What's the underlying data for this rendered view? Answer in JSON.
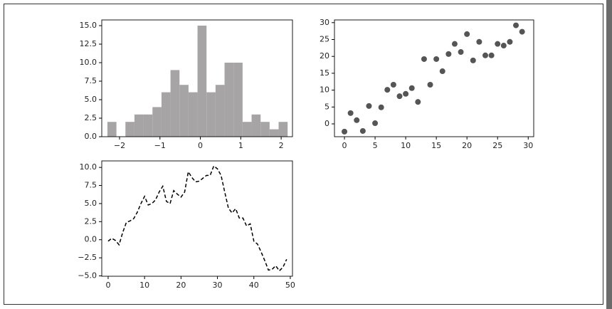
{
  "chart_data": [
    {
      "type": "histogram",
      "color": "#a6a4a4",
      "bins": [
        -2.3,
        -2.077,
        -1.854,
        -1.631,
        -1.408,
        -1.185,
        -0.962,
        -0.739,
        -0.516,
        -0.293,
        -0.07,
        0.153,
        0.376,
        0.599,
        0.822,
        1.045,
        1.268,
        1.491,
        1.714,
        1.937,
        2.16
      ],
      "values": [
        2,
        0,
        2,
        3,
        3,
        4,
        6,
        9,
        7,
        6,
        15,
        6,
        7,
        10,
        10,
        2,
        3,
        2,
        1,
        2
      ],
      "xlim": [
        -2.44,
        2.28
      ],
      "ylim": [
        0,
        15.77
      ],
      "xticks": [
        {
          "value": -2,
          "label": "−2"
        },
        {
          "value": -1,
          "label": "−1"
        },
        0,
        1,
        2
      ],
      "yticks": [
        {
          "value": 0,
          "label": "0.0"
        },
        {
          "value": 2.5,
          "label": "2.5"
        },
        {
          "value": 5,
          "label": "5.0"
        },
        {
          "value": 7.5,
          "label": "7.5"
        },
        {
          "value": 10,
          "label": "10.0"
        },
        {
          "value": 12.5,
          "label": "12.5"
        },
        {
          "value": 15,
          "label": "15.0"
        }
      ]
    },
    {
      "type": "scatter",
      "color": "#555555",
      "x": [
        0,
        1,
        2,
        3,
        4,
        5,
        6,
        7,
        8,
        9,
        10,
        11,
        12,
        13,
        14,
        15,
        16,
        17,
        18,
        19,
        20,
        21,
        22,
        23,
        24,
        25,
        26,
        27,
        28,
        29
      ],
      "values": [
        -2.3,
        3.2,
        1.1,
        -2.1,
        5.3,
        0.2,
        4.9,
        10.1,
        11.6,
        8.2,
        8.9,
        10.6,
        6.5,
        19.2,
        11.6,
        19.2,
        15.6,
        20.7,
        23.7,
        21.3,
        26.6,
        18.8,
        24.3,
        20.3,
        20.3,
        23.7,
        23.2,
        24.3,
        29.2,
        27.3
      ],
      "xlim": [
        -1.63,
        30.9
      ],
      "ylim": [
        -3.8,
        30.8
      ],
      "xticks": [
        0,
        5,
        10,
        15,
        20,
        25,
        30
      ],
      "yticks": [
        0,
        5,
        10,
        15,
        20,
        25,
        30
      ]
    },
    {
      "type": "line",
      "color": "#000000",
      "linestyle": "dashed",
      "x": [
        0,
        1,
        2,
        3,
        4,
        5,
        6,
        7,
        8,
        9,
        10,
        11,
        12,
        13,
        14,
        15,
        16,
        17,
        18,
        19,
        20,
        21,
        22,
        23,
        24,
        25,
        26,
        27,
        28,
        29,
        30,
        31,
        32,
        33,
        34,
        35,
        36,
        37,
        38,
        39,
        40,
        41,
        42,
        43,
        44,
        45,
        46,
        47,
        48,
        49
      ],
      "values": [
        -0.2,
        0.2,
        -0.1,
        -0.7,
        1.0,
        2.4,
        2.6,
        2.9,
        3.8,
        5.0,
        6.0,
        4.8,
        5.0,
        5.5,
        6.6,
        7.4,
        5.3,
        5.0,
        6.8,
        6.3,
        5.9,
        6.6,
        9.4,
        8.6,
        8.0,
        8.1,
        8.5,
        8.9,
        8.9,
        10.2,
        9.8,
        8.9,
        6.6,
        4.4,
        3.7,
        4.3,
        3.0,
        3.0,
        1.9,
        2.2,
        -0.2,
        -0.6,
        -1.7,
        -2.9,
        -4.2,
        -4.1,
        -3.6,
        -4.3,
        -3.8,
        -2.7
      ],
      "xlim": [
        -1.75,
        50.6
      ],
      "ylim": [
        -5.05,
        10.9
      ],
      "xticks": [
        0,
        10,
        20,
        30,
        40,
        50
      ],
      "yticks": [
        {
          "value": -5,
          "label": "−5.0"
        },
        {
          "value": -2.5,
          "label": "−2.5"
        },
        {
          "value": 0,
          "label": "0.0"
        },
        {
          "value": 2.5,
          "label": "2.5"
        },
        {
          "value": 5,
          "label": "5.0"
        },
        {
          "value": 7.5,
          "label": "7.5"
        },
        {
          "value": 10,
          "label": "10.0"
        }
      ]
    }
  ]
}
